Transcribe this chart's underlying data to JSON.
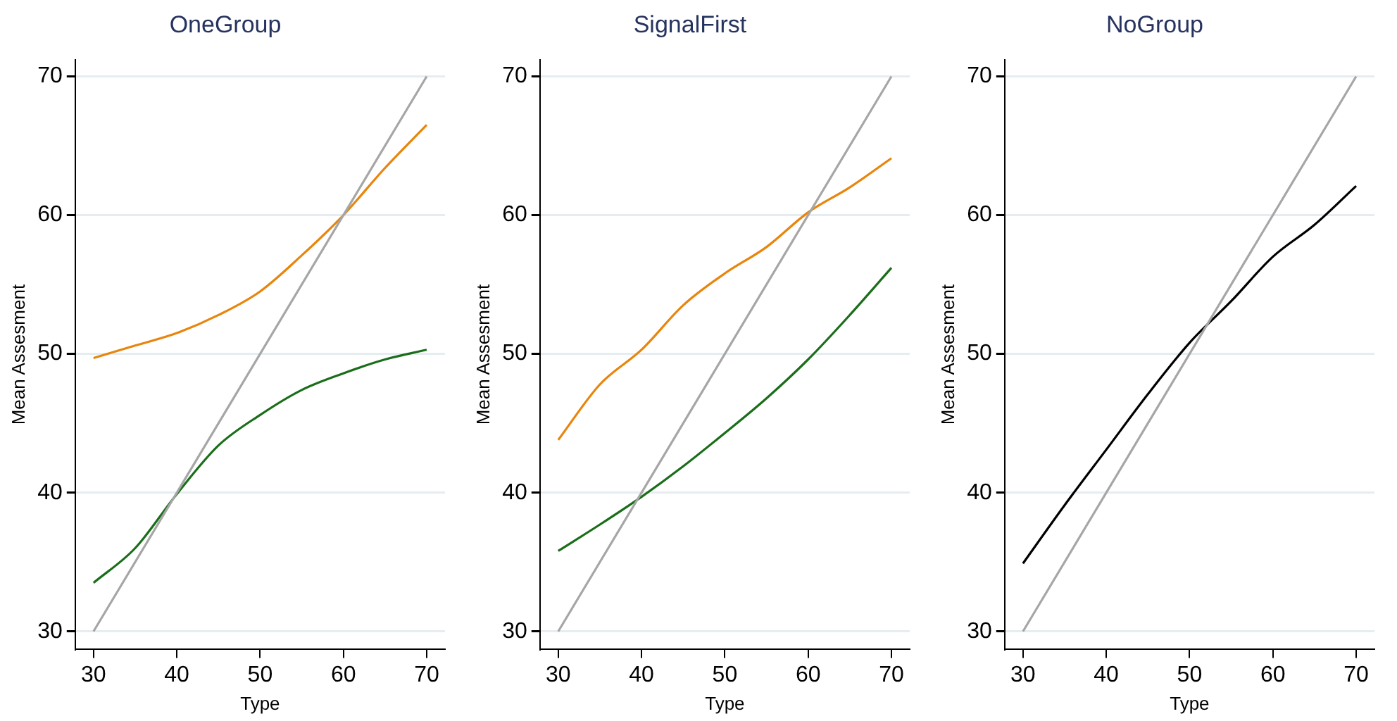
{
  "chart_data": [
    {
      "type": "line",
      "title": "OneGroup",
      "xlabel": "Type",
      "ylabel": "Mean Assesment",
      "xlim": [
        27.8,
        72.2
      ],
      "ylim": [
        28.7,
        71.2
      ],
      "xticks": [
        30,
        40,
        50,
        60,
        70
      ],
      "yticks": [
        30,
        40,
        50,
        60,
        70
      ],
      "grid": "y",
      "legend": false,
      "marker": "none",
      "line_style": "solid",
      "series": [
        {
          "color": "#a6a6a6",
          "x": [
            30,
            70
          ],
          "values": [
            30,
            70
          ]
        },
        {
          "color": "#e8850c",
          "x": [
            30,
            35,
            40,
            45,
            50,
            55,
            60,
            65,
            70
          ],
          "values": [
            49.7,
            50.6,
            51.5,
            52.8,
            54.5,
            57.1,
            60.0,
            63.4,
            66.5
          ]
        },
        {
          "color": "#1a6e1a",
          "x": [
            30,
            35,
            40,
            45,
            50,
            55,
            60,
            65,
            70
          ],
          "values": [
            33.5,
            36.0,
            39.9,
            43.4,
            45.6,
            47.4,
            48.6,
            49.6,
            50.3
          ]
        }
      ]
    },
    {
      "type": "line",
      "title": "SignalFirst",
      "xlabel": "Type",
      "ylabel": "Mean Assesment",
      "xlim": [
        27.8,
        72.2
      ],
      "ylim": [
        28.7,
        71.2
      ],
      "xticks": [
        30,
        40,
        50,
        60,
        70
      ],
      "yticks": [
        30,
        40,
        50,
        60,
        70
      ],
      "grid": "y",
      "legend": false,
      "marker": "none",
      "line_style": "solid",
      "series": [
        {
          "color": "#a6a6a6",
          "x": [
            30,
            70
          ],
          "values": [
            30,
            70
          ]
        },
        {
          "color": "#e8850c",
          "x": [
            30,
            35,
            40,
            45,
            50,
            55,
            60,
            65,
            70
          ],
          "values": [
            43.8,
            47.8,
            50.3,
            53.5,
            55.8,
            57.7,
            60.2,
            62.0,
            64.1
          ]
        },
        {
          "color": "#1a6e1a",
          "x": [
            30,
            35,
            40,
            45,
            50,
            55,
            60,
            65,
            70
          ],
          "values": [
            35.8,
            37.7,
            39.7,
            41.9,
            44.3,
            46.8,
            49.6,
            52.8,
            56.2
          ]
        }
      ]
    },
    {
      "type": "line",
      "title": "NoGroup",
      "xlabel": "Type",
      "ylabel": "Mean Assesment",
      "xlim": [
        27.8,
        72.2
      ],
      "ylim": [
        28.7,
        71.2
      ],
      "xticks": [
        30,
        40,
        50,
        60,
        70
      ],
      "yticks": [
        30,
        40,
        50,
        60,
        70
      ],
      "grid": "y",
      "legend": false,
      "marker": "none",
      "line_style": "solid",
      "series": [
        {
          "color": "#a6a6a6",
          "x": [
            30,
            70
          ],
          "values": [
            30,
            70
          ]
        },
        {
          "color": "#000000",
          "x": [
            30,
            35,
            40,
            45,
            50,
            55,
            60,
            65,
            70
          ],
          "values": [
            34.9,
            39.1,
            43.1,
            47.1,
            50.8,
            53.8,
            57.0,
            59.3,
            62.1
          ]
        }
      ]
    }
  ]
}
